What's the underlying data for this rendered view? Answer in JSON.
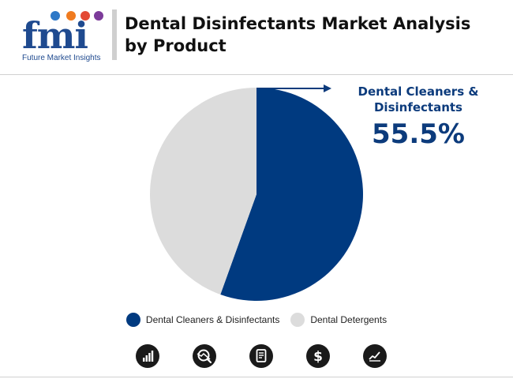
{
  "header": {
    "logo_text": "fmi",
    "logo_tagline": "Future Market Insights",
    "title": "Dental Disinfectants Market Analysis by Product"
  },
  "callout": {
    "label": "Dental Cleaners & Disinfectants",
    "value": "55.5%"
  },
  "colors": {
    "dental_cleaners": "#003a80",
    "dental_detergents": "#dcdcdc",
    "brand": "#1f4a8f"
  },
  "chart_data": {
    "type": "pie",
    "title": "Dental Disinfectants Market Analysis by Product",
    "slices": [
      {
        "label": "Dental Cleaners & Disinfectants",
        "value": 55.5,
        "color": "#003a80"
      },
      {
        "label": "Dental Detergents",
        "value": 44.5,
        "color": "#dcdcdc"
      }
    ],
    "start_angle_deg": 0,
    "direction": "clockwise",
    "legend_position": "bottom"
  },
  "legend": [
    {
      "label": "Dental Cleaners & Disinfectants",
      "color": "#003a80"
    },
    {
      "label": "Dental Detergents",
      "color": "#dcdcdc"
    }
  ],
  "footer_icons": [
    "bar-chart-icon",
    "magnifier-trend-icon",
    "document-icon",
    "dollar-icon",
    "line-chart-icon"
  ]
}
